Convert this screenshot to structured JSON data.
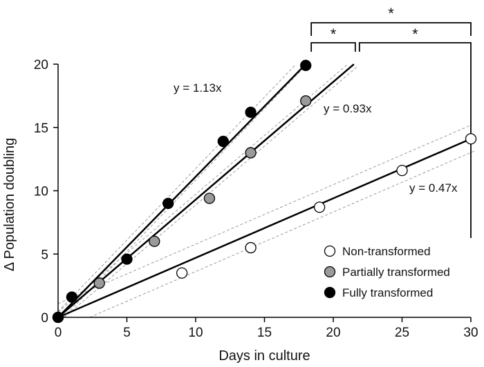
{
  "chart_data": {
    "type": "scatter",
    "xlabel": "Days in culture",
    "ylabel": "Δ Population doubling",
    "xlim": [
      0,
      30
    ],
    "ylim": [
      0,
      20
    ],
    "x_ticks": [
      0,
      5,
      10,
      15,
      20,
      25,
      30
    ],
    "y_ticks": [
      0,
      5,
      10,
      15,
      20
    ],
    "x_tick_labels": [
      "0",
      "5",
      "10",
      "15",
      "20",
      "25",
      "30"
    ],
    "y_tick_labels": [
      "0",
      "5",
      "10",
      "15",
      "20"
    ],
    "grid": false,
    "legend_position": "bottom-right",
    "series": [
      {
        "name": "Non-transformed",
        "marker": "open-circle",
        "fill": "#ffffff",
        "points": [
          [
            0,
            0
          ],
          [
            9,
            3.5
          ],
          [
            14,
            5.5
          ],
          [
            19,
            8.7
          ],
          [
            25,
            11.6
          ],
          [
            30,
            14.1
          ]
        ],
        "fit_slope": 0.47,
        "fit_label": "y = 0.47x",
        "fit_x_range": [
          0,
          30
        ]
      },
      {
        "name": "Partially transformed",
        "marker": "gray-circle",
        "fill": "#9a9a9a",
        "points": [
          [
            0,
            0
          ],
          [
            3,
            2.7
          ],
          [
            7,
            6.0
          ],
          [
            11,
            9.4
          ],
          [
            14,
            13.0
          ],
          [
            18,
            17.1
          ]
        ],
        "fit_slope": 0.93,
        "fit_label": "y = 0.93x",
        "fit_x_range": [
          0,
          21.5
        ]
      },
      {
        "name": "Fully transformed",
        "marker": "filled-circle",
        "fill": "#000000",
        "points": [
          [
            0,
            0
          ],
          [
            1,
            1.6
          ],
          [
            5,
            4.6
          ],
          [
            8,
            9.0
          ],
          [
            12,
            13.9
          ],
          [
            14,
            16.2
          ],
          [
            18,
            19.9
          ]
        ],
        "fit_slope": 1.13,
        "fit_label": "y = 1.13x",
        "fit_x_range": [
          0,
          18
        ]
      }
    ],
    "significance": [
      {
        "label": "*",
        "between": [
          "Fully transformed",
          "Partially transformed"
        ]
      },
      {
        "label": "*",
        "between": [
          "Partially transformed",
          "Non-transformed"
        ]
      },
      {
        "label": "*",
        "between": [
          "Fully transformed",
          "Non-transformed"
        ]
      }
    ]
  }
}
